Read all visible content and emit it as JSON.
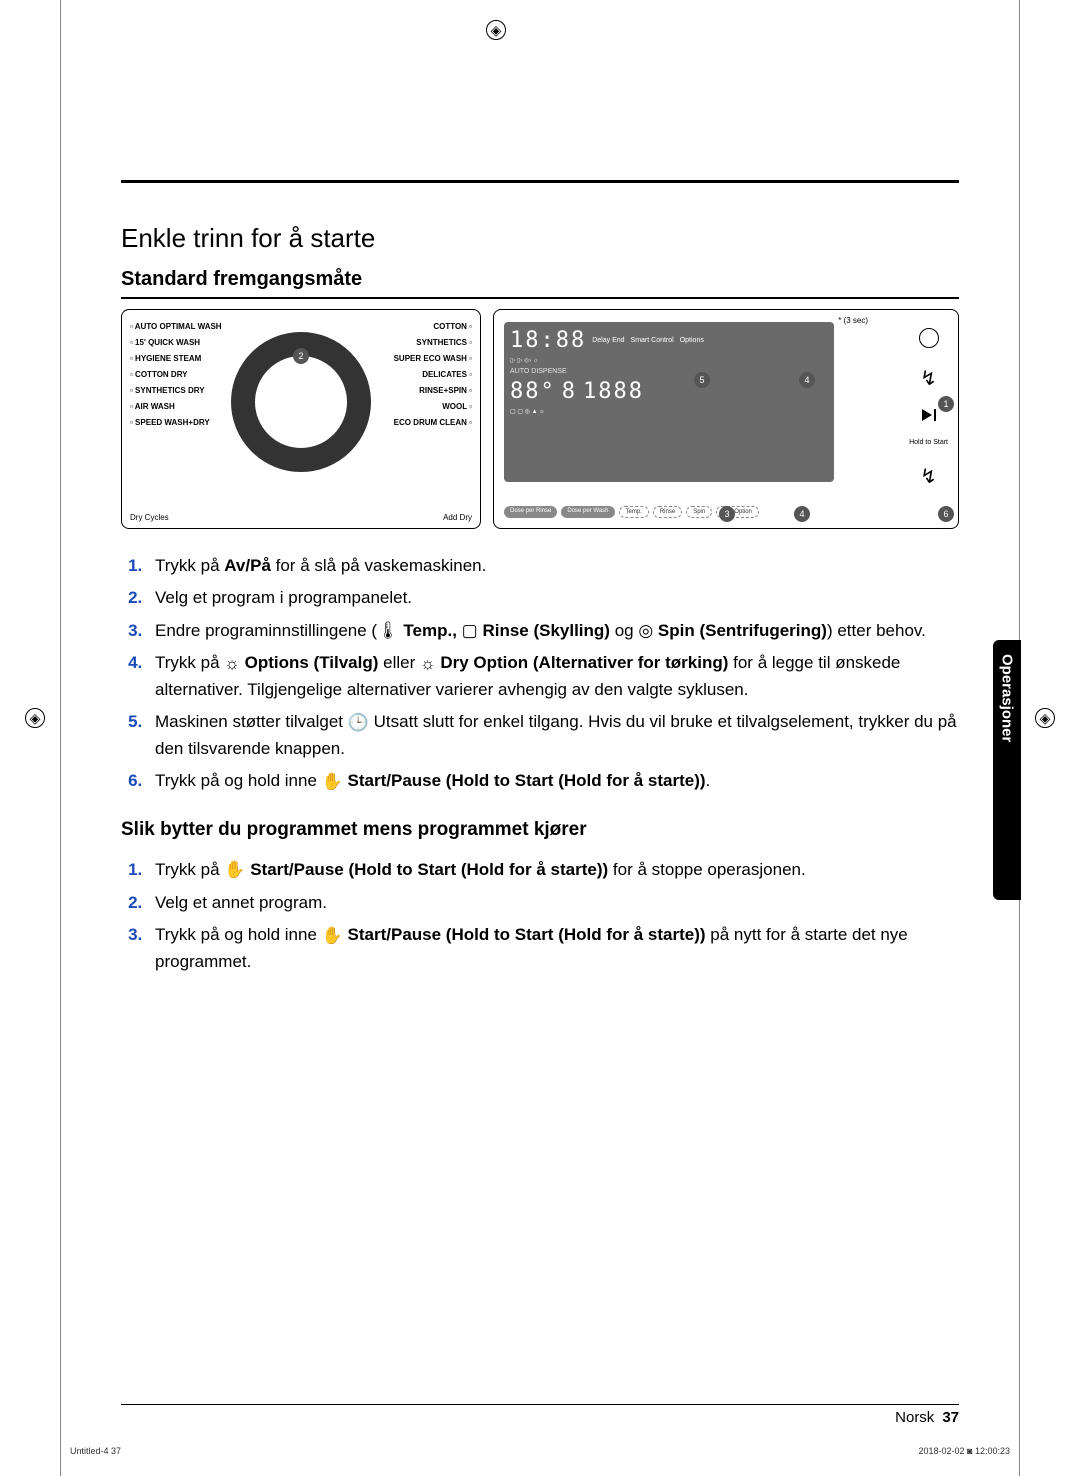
{
  "heading": "Enkle trinn for å starte",
  "subheading": "Standard fremgangsmåte",
  "dial": {
    "left_programs": [
      "AUTO OPTIMAL WASH",
      "15' QUICK WASH",
      "HYGIENE STEAM",
      "COTTON DRY",
      "SYNTHETICS DRY",
      "AIR WASH",
      "SPEED WASH+DRY"
    ],
    "right_programs": [
      "COTTON",
      "SYNTHETICS",
      "SUPER ECO WASH",
      "DELICATES",
      "RINSE+SPIN",
      "WOOL",
      "ECO DRUM CLEAN"
    ],
    "bottom_left": "Dry Cycles",
    "bottom_right": "Add Dry",
    "callout": "2"
  },
  "display": {
    "time": "18:88",
    "delay_end": "Delay End",
    "smart_control": "Smart Control",
    "options": "Options",
    "hold_note": "* (3 sec)",
    "auto_dispense": "AUTO DISPENSE",
    "big1": "88°",
    "big2": "8",
    "big3": "1888",
    "buttons": [
      "Dose per Rinse",
      "Dose per Wash",
      "Temp.",
      "Rinse",
      "Spin",
      "Dry Option"
    ],
    "hold_to_start": "Hold to Start"
  },
  "callouts": {
    "c1": "1",
    "c3": "3",
    "c4": "4",
    "c5": "5",
    "c6": "6"
  },
  "steps_a": [
    {
      "pre": "Trykk på ",
      "b": "Av/På",
      "post": " for å slå på vaskemaskinen."
    },
    {
      "pre": "Velg et program i programpanelet.",
      "b": "",
      "post": ""
    },
    {
      "pre": "Endre programinnstillingene (",
      "b": "Temp., ",
      "mid": "Rinse (Skylling)",
      "post2": " og ",
      "b2": "Spin (Sentrifugering)",
      "post": ") etter behov."
    },
    {
      "pre": "Trykk på ",
      "b": "Options (Tilvalg)",
      "mid": " eller ",
      "b2": "Dry Option (Alternativer for tørking)",
      "post": " for å legge til ønskede alternativer. Tilgjengelige alternativer varierer avhengig av den valgte syklusen."
    },
    {
      "pre": "Maskinen støtter tilvalget ",
      "b": "",
      "mid": "Utsatt slutt for enkel tilgang. Hvis du vil bruke et tilvalgselement, trykker du på den tilsvarende knappen.",
      "post": ""
    },
    {
      "pre": "Trykk på og hold inne ",
      "b": "Start/Pause (Hold to Start (Hold for å starte))",
      "post": "."
    }
  ],
  "subheading2": "Slik bytter du programmet mens programmet kjører",
  "steps_b": [
    {
      "pre": "Trykk på ",
      "b": "Start/Pause (Hold to Start (Hold for å starte))",
      "post": " for å stoppe operasjonen."
    },
    {
      "pre": "Velg et annet program.",
      "b": "",
      "post": ""
    },
    {
      "pre": "Trykk på og hold inne ",
      "b": "Start/Pause (Hold to Start (Hold for å starte))",
      "post": " på nytt for å starte det nye programmet."
    }
  ],
  "side_tab": "Operasjoner",
  "footer_lang": "Norsk",
  "footer_page": "37",
  "tiny_left": "Untitled-4   37",
  "tiny_right": "2018-02-02   ◙ 12:00:23"
}
